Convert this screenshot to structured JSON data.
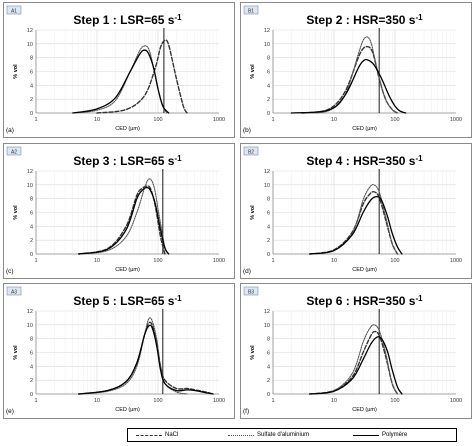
{
  "colors": {
    "nacl": "#333333",
    "sulfate": "#555555",
    "polymere": "#000000",
    "frame": "#8a8a8a",
    "tag_bg": "#dde6f3",
    "grid": "#d9d9d9"
  },
  "legend": {
    "nacl": "NaCl",
    "sulfate": "Sulfate d'aluminium",
    "polymere": "Polymère"
  },
  "chart_data": [
    {
      "type": "line",
      "tag": "A1",
      "panel_label": "(a)",
      "title_main": "Step 1 : LSR=65 s",
      "title_sup": "-1",
      "xlabel": "CED (µm)",
      "ylabel": "% vol",
      "xscale": "log",
      "xlim": [
        1,
        1000
      ],
      "ylim": [
        0,
        12
      ],
      "xticks": [
        "1",
        "10",
        "100",
        "1000"
      ],
      "yticks": [
        "0",
        "2",
        "4",
        "6",
        "8",
        "10",
        "12"
      ],
      "vline_x": 125,
      "series": [
        {
          "name": "NaCl",
          "style": "dashed",
          "x": [
            10,
            30,
            60,
            90,
            110,
            130,
            150,
            200,
            260,
            300
          ],
          "y": [
            0,
            0.5,
            2.5,
            6.5,
            9.5,
            10.5,
            9.8,
            5,
            1,
            0
          ]
        },
        {
          "name": "Sulfate d'aluminium",
          "style": "dotted",
          "x": [
            4,
            10,
            20,
            35,
            50,
            60,
            70,
            80,
            100,
            120,
            140
          ],
          "y": [
            0,
            0.4,
            1.8,
            6,
            9,
            9.7,
            9.3,
            7.5,
            3.5,
            1,
            0
          ]
        },
        {
          "name": "Polymère",
          "style": "solid",
          "x": [
            4,
            10,
            20,
            35,
            50,
            60,
            70,
            85,
            100,
            120,
            150
          ],
          "y": [
            0,
            0.6,
            2.2,
            6,
            8.5,
            9.1,
            8.6,
            6.5,
            3.5,
            1,
            0
          ]
        }
      ]
    },
    {
      "type": "line",
      "tag": "B1",
      "panel_label": "(b)",
      "title_main": "Step 2 : HSR=350 s",
      "title_sup": "-1",
      "xlabel": "CED (µm)",
      "ylabel": "% vol",
      "xscale": "log",
      "xlim": [
        1,
        1000
      ],
      "ylim": [
        0,
        12
      ],
      "xticks": [
        "1",
        "10",
        "100",
        "1000"
      ],
      "yticks": [
        "0",
        "2",
        "4",
        "6",
        "8",
        "10",
        "12"
      ],
      "vline_x": 55,
      "series": [
        {
          "name": "NaCl",
          "style": "dashed",
          "x": [
            3,
            8,
            15,
            25,
            30,
            35,
            40,
            45,
            55,
            70,
            90,
            110
          ],
          "y": [
            0,
            0.5,
            3,
            8,
            9.3,
            9.6,
            9.3,
            8.2,
            5,
            2,
            0.5,
            0
          ]
        },
        {
          "name": "Sulfate d'aluminium",
          "style": "dotted",
          "x": [
            3,
            8,
            15,
            25,
            30,
            35,
            40,
            45,
            55,
            70,
            90,
            110
          ],
          "y": [
            0,
            0.3,
            2.5,
            8.5,
            10.5,
            11,
            10.3,
            8.5,
            5,
            2,
            0.5,
            0
          ]
        },
        {
          "name": "Polymère",
          "style": "solid",
          "x": [
            2,
            8,
            15,
            25,
            30,
            35,
            45,
            60,
            80,
            100,
            120,
            150
          ],
          "y": [
            0,
            0.4,
            2.5,
            6.5,
            7.5,
            7.7,
            7,
            5,
            2.5,
            1,
            0.3,
            0
          ]
        }
      ]
    },
    {
      "type": "line",
      "tag": "A2",
      "panel_label": "(c)",
      "title_main": "Step 3 : LSR=65 s",
      "title_sup": "-1",
      "xlabel": "CED (µm)",
      "ylabel": "% vol",
      "xscale": "log",
      "xlim": [
        1,
        1000
      ],
      "ylim": [
        0,
        12
      ],
      "xticks": [
        "1",
        "10",
        "100",
        "1000"
      ],
      "yticks": [
        "0",
        "2",
        "4",
        "6",
        "8",
        "10",
        "12"
      ],
      "vline_x": 120,
      "series": [
        {
          "name": "NaCl",
          "style": "dashed",
          "x": [
            5,
            15,
            30,
            45,
            55,
            65,
            75,
            90,
            110,
            130
          ],
          "y": [
            0,
            0.8,
            4,
            8.5,
            9.5,
            9.8,
            9.5,
            7,
            2.5,
            0
          ]
        },
        {
          "name": "Sulfate d'aluminium",
          "style": "dotted",
          "x": [
            5,
            15,
            30,
            45,
            60,
            70,
            80,
            90,
            100,
            115,
            130,
            150
          ],
          "y": [
            0,
            0.5,
            2.5,
            6,
            9.5,
            10.8,
            10.5,
            9,
            6.5,
            3.5,
            1,
            0
          ]
        },
        {
          "name": "Polymère",
          "style": "solid",
          "x": [
            5,
            15,
            30,
            45,
            55,
            65,
            75,
            90,
            110,
            130,
            150
          ],
          "y": [
            0,
            0.7,
            3.5,
            8,
            9.2,
            9.6,
            9.2,
            7.3,
            3.5,
            0.8,
            0
          ]
        }
      ]
    },
    {
      "type": "line",
      "tag": "B2",
      "panel_label": "(d)",
      "title_main": "Step 4 : HSR=350 s",
      "title_sup": "-1",
      "xlabel": "CED (µm)",
      "ylabel": "% vol",
      "xscale": "log",
      "xlim": [
        1,
        1000
      ],
      "ylim": [
        0,
        12
      ],
      "xticks": [
        "1",
        "10",
        "100",
        "1000"
      ],
      "yticks": [
        "0",
        "2",
        "4",
        "6",
        "8",
        "10",
        "12"
      ],
      "vline_x": 55,
      "series": [
        {
          "name": "NaCl",
          "style": "dashed",
          "x": [
            4,
            10,
            20,
            30,
            38,
            45,
            55,
            70,
            90,
            110
          ],
          "y": [
            0,
            0.6,
            3.2,
            7.2,
            8.6,
            9,
            8.2,
            5,
            1.5,
            0
          ]
        },
        {
          "name": "Sulfate d'aluminium",
          "style": "dotted",
          "x": [
            4,
            10,
            20,
            30,
            38,
            45,
            55,
            70,
            90,
            110
          ],
          "y": [
            0,
            0.5,
            3,
            7.8,
            9.6,
            10,
            9,
            5.5,
            1.5,
            0
          ]
        },
        {
          "name": "Polymère",
          "style": "solid",
          "x": [
            4,
            10,
            20,
            30,
            40,
            50,
            60,
            75,
            90,
            110,
            130
          ],
          "y": [
            0,
            0.5,
            2.8,
            6,
            7.8,
            8.3,
            7.8,
            5.5,
            3,
            1,
            0
          ]
        }
      ]
    },
    {
      "type": "line",
      "tag": "A3",
      "panel_label": "(e)",
      "title_main": "Step 5 : LSR=65 s",
      "title_sup": "-1",
      "xlabel": "CED (µm)",
      "ylabel": "% vol",
      "xscale": "log",
      "xlim": [
        1,
        1000
      ],
      "ylim": [
        0,
        12
      ],
      "xticks": [
        "1",
        "10",
        "100",
        "1000"
      ],
      "yticks": [
        "0",
        "2",
        "4",
        "6",
        "8",
        "10",
        "12"
      ],
      "vline_x": 120,
      "series": [
        {
          "name": "NaCl",
          "style": "dashed",
          "x": [
            5,
            15,
            30,
            45,
            60,
            70,
            80,
            95,
            110,
            130,
            200,
            300,
            400,
            600,
            800
          ],
          "y": [
            0,
            0.5,
            1.8,
            4.5,
            8.5,
            10.2,
            10,
            7.5,
            4,
            2,
            0.8,
            0.8,
            0.6,
            0.3,
            0
          ]
        },
        {
          "name": "Sulfate d'aluminium",
          "style": "dotted",
          "x": [
            5,
            15,
            30,
            45,
            60,
            70,
            80,
            95,
            110,
            130,
            200,
            300
          ],
          "y": [
            0,
            0.4,
            1.5,
            4,
            8.5,
            10.8,
            10.6,
            8,
            4,
            1.5,
            0.3,
            0
          ]
        },
        {
          "name": "Polymère",
          "style": "solid",
          "x": [
            5,
            15,
            30,
            45,
            60,
            70,
            80,
            95,
            110,
            130,
            200,
            300,
            400,
            600,
            800
          ],
          "y": [
            0,
            0.5,
            1.8,
            4.5,
            8.5,
            9.8,
            9.6,
            7,
            3.5,
            1.5,
            0.5,
            0.6,
            0.5,
            0.2,
            0
          ]
        }
      ]
    },
    {
      "type": "line",
      "tag": "B3",
      "panel_label": "(f)",
      "title_main": "Step 6 : HSR=350 s",
      "title_sup": "-1",
      "xlabel": "CED (µm)",
      "ylabel": "% vol",
      "xscale": "log",
      "xlim": [
        1,
        1000
      ],
      "ylim": [
        0,
        12
      ],
      "xticks": [
        "1",
        "10",
        "100",
        "1000"
      ],
      "yticks": [
        "0",
        "2",
        "4",
        "6",
        "8",
        "10",
        "12"
      ],
      "vline_x": 55,
      "series": [
        {
          "name": "NaCl",
          "style": "dashed",
          "x": [
            4,
            10,
            20,
            30,
            38,
            45,
            55,
            70,
            90,
            110
          ],
          "y": [
            0,
            0.5,
            2.5,
            6,
            8,
            9,
            8.5,
            5.5,
            1.5,
            0
          ]
        },
        {
          "name": "Sulfate d'aluminium",
          "style": "dotted",
          "x": [
            4,
            10,
            20,
            30,
            38,
            45,
            55,
            70,
            90,
            110
          ],
          "y": [
            0,
            0.5,
            3,
            7.5,
            9.4,
            10,
            9.2,
            6,
            1.5,
            0
          ]
        },
        {
          "name": "Polymère",
          "style": "solid",
          "x": [
            4,
            10,
            20,
            30,
            40,
            50,
            60,
            75,
            90,
            110,
            130
          ],
          "y": [
            0,
            0.4,
            2.2,
            5,
            7.2,
            8.2,
            8,
            6.2,
            3.5,
            1,
            0
          ]
        }
      ]
    }
  ]
}
